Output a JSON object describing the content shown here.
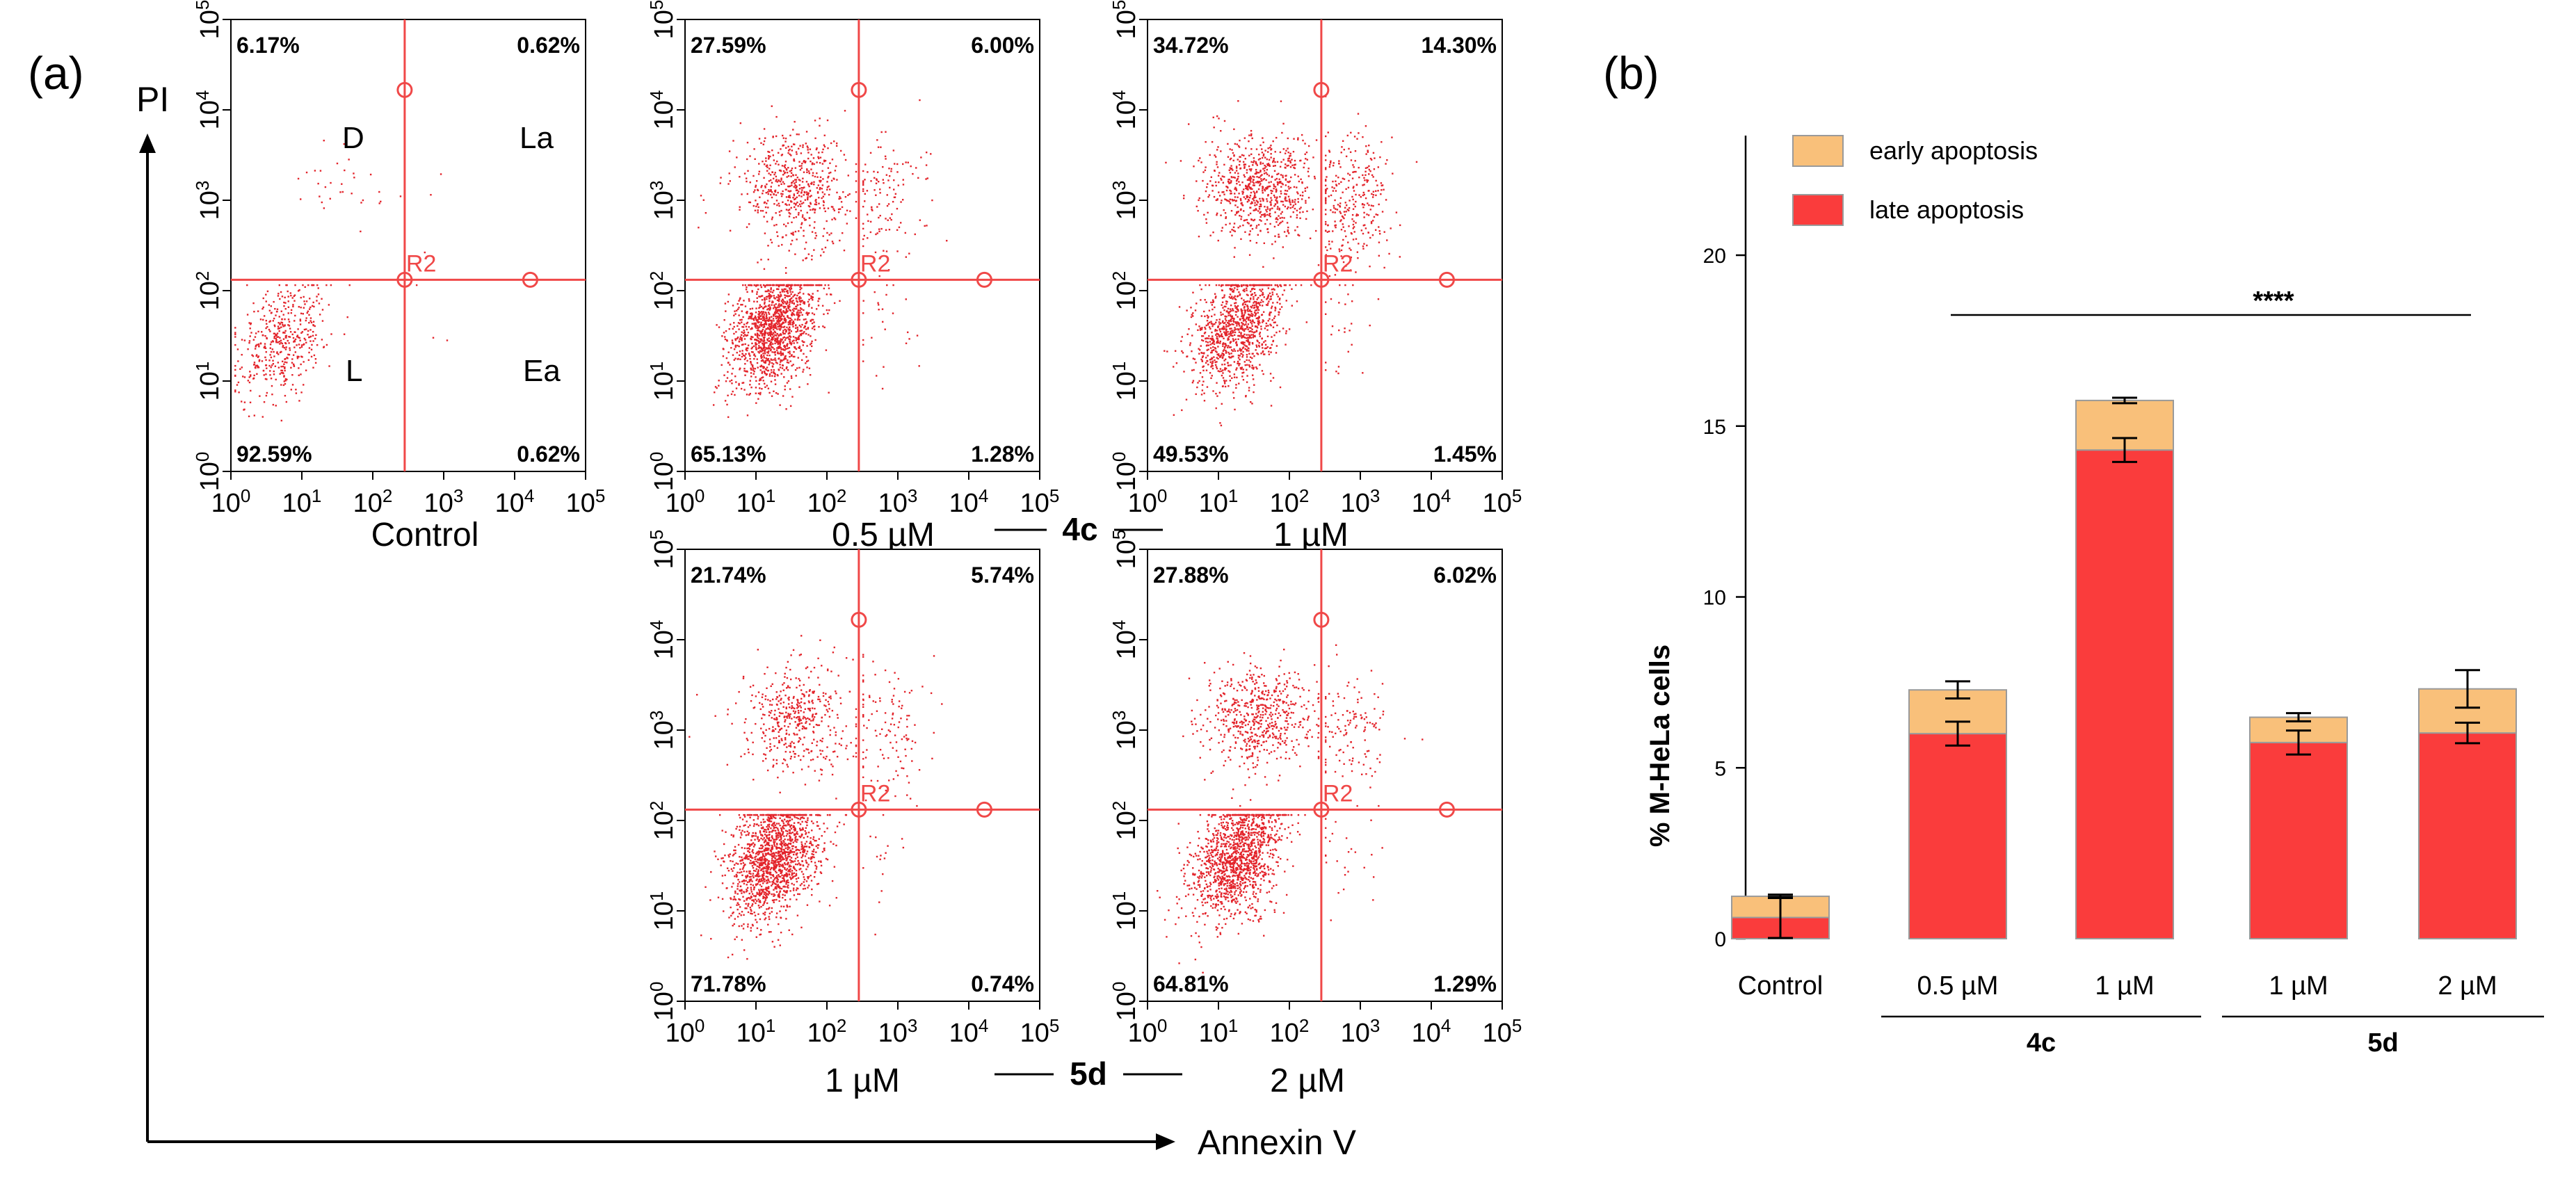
{
  "panel_labels": {
    "a": "(a)",
    "b": "(b)"
  },
  "colors": {
    "dot": "#e3242b",
    "gate": "#f04848",
    "early": "#f9c07a",
    "late": "#fa3c3c",
    "bar_edge": "#9a9a9a",
    "ink": "#000000"
  },
  "panel_a": {
    "y_axis_label": "PI",
    "x_axis_label": "Annexin V",
    "tick_labels": [
      "10^0",
      "10^1",
      "10^2",
      "10^3",
      "10^4",
      "10^5"
    ],
    "gate_label": "R2",
    "quadrant_names": {
      "D": "D",
      "La": "La",
      "L": "L",
      "Ea": "Ea"
    },
    "group_labels": {
      "4c": "4c",
      "5d": "5d"
    },
    "plots": [
      {
        "id": "control",
        "caption": "Control",
        "q_tl": "6.17%",
        "q_tr": "0.62%",
        "q_bl": "92.59%",
        "q_br": "0.62%"
      },
      {
        "id": "4c-0.5",
        "caption": "0.5 µM",
        "q_tl": "27.59%",
        "q_tr": "6.00%",
        "q_bl": "65.13%",
        "q_br": "1.28%"
      },
      {
        "id": "4c-1",
        "caption": "1 µM",
        "q_tl": "34.72%",
        "q_tr": "14.30%",
        "q_bl": "49.53%",
        "q_br": "1.45%"
      },
      {
        "id": "5d-1",
        "caption": "1 µM",
        "q_tl": "21.74%",
        "q_tr": "5.74%",
        "q_bl": "71.78%",
        "q_br": "0.74%"
      },
      {
        "id": "5d-2",
        "caption": "2 µM",
        "q_tl": "27.88%",
        "q_tr": "6.02%",
        "q_bl": "64.81%",
        "q_br": "1.29%"
      }
    ]
  },
  "chart_data": {
    "type": "bar",
    "stacked": true,
    "ylabel": "% M-HeLa cells",
    "xlabel": "",
    "ylim": [
      0,
      23.5
    ],
    "yticks": [
      0,
      5,
      10,
      15,
      20
    ],
    "categories": [
      "Control",
      "0.5 µM",
      "1 µM",
      "1 µM",
      "2 µM"
    ],
    "groups": [
      {
        "label": "4c",
        "categories": [
          1,
          2
        ]
      },
      {
        "label": "5d",
        "categories": [
          3,
          4
        ]
      }
    ],
    "series": [
      {
        "name": "late apoptosis",
        "values": [
          0.62,
          6.0,
          14.3,
          5.74,
          6.02
        ],
        "errors": [
          0.6,
          0.35,
          0.35,
          0.35,
          0.3
        ]
      },
      {
        "name": "early apoptosis",
        "values": [
          0.62,
          1.28,
          1.45,
          0.74,
          1.29
        ],
        "errors": [
          0.05,
          0.25,
          0.08,
          0.12,
          0.55
        ]
      }
    ],
    "legend": [
      "early apoptosis",
      "late apoptosis"
    ],
    "legend_position": "top-left",
    "significance": {
      "label": "****",
      "from_category": 1,
      "to_category": 4
    }
  }
}
